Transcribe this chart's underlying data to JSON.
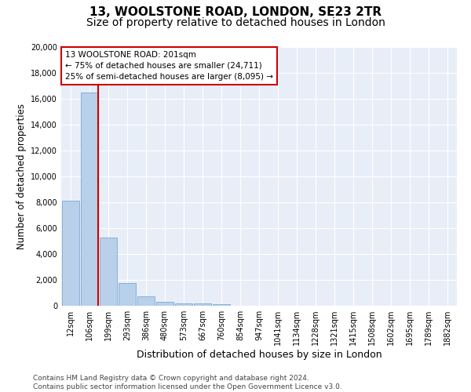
{
  "title_line1": "13, WOOLSTONE ROAD, LONDON, SE23 2TR",
  "title_line2": "Size of property relative to detached houses in London",
  "xlabel": "Distribution of detached houses by size in London",
  "ylabel": "Number of detached properties",
  "footnote1": "Contains HM Land Registry data © Crown copyright and database right 2024.",
  "footnote2": "Contains public sector information licensed under the Open Government Licence v3.0.",
  "bar_labels": [
    "12sqm",
    "106sqm",
    "199sqm",
    "293sqm",
    "386sqm",
    "480sqm",
    "573sqm",
    "667sqm",
    "760sqm",
    "854sqm",
    "947sqm",
    "1041sqm",
    "1134sqm",
    "1228sqm",
    "1321sqm",
    "1415sqm",
    "1508sqm",
    "1602sqm",
    "1695sqm",
    "1789sqm",
    "1882sqm"
  ],
  "bar_values": [
    8100,
    16500,
    5300,
    1750,
    700,
    330,
    200,
    180,
    150,
    0,
    0,
    0,
    0,
    0,
    0,
    0,
    0,
    0,
    0,
    0,
    0
  ],
  "bar_color": "#b8d0ea",
  "bar_edge_color": "#6aa0cc",
  "highlight_line_color": "#cc0000",
  "annotation_text": "13 WOOLSTONE ROAD: 201sqm\n← 75% of detached houses are smaller (24,711)\n25% of semi-detached houses are larger (8,095) →",
  "annotation_box_color": "#cc0000",
  "ylim": [
    0,
    20000
  ],
  "yticks": [
    0,
    2000,
    4000,
    6000,
    8000,
    10000,
    12000,
    14000,
    16000,
    18000,
    20000
  ],
  "bg_color": "#e8eef8",
  "grid_color": "#ffffff",
  "title_fontsize": 11,
  "subtitle_fontsize": 10,
  "tick_fontsize": 7,
  "ylabel_fontsize": 8.5,
  "xlabel_fontsize": 9,
  "footnote_fontsize": 6.5
}
